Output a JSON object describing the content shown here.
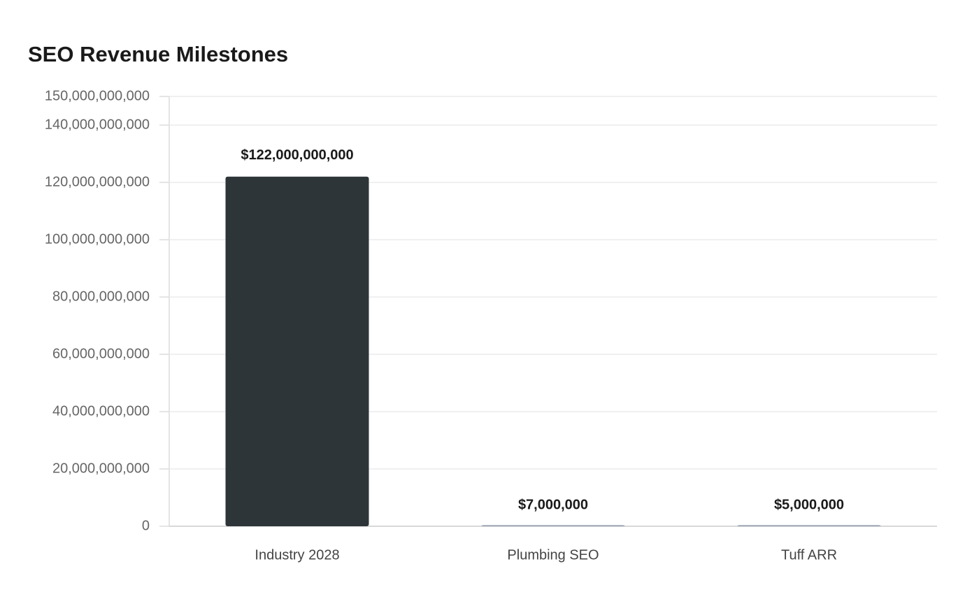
{
  "chart_data": {
    "type": "bar",
    "title": "SEO Revenue Milestones",
    "categories": [
      "Industry 2028",
      "Plumbing SEO",
      "Tuff ARR"
    ],
    "values": [
      122000000000,
      7000000,
      5000000
    ],
    "value_labels": [
      "$122,000,000,000",
      "$7,000,000",
      "$5,000,000"
    ],
    "colors": [
      "#2e3538",
      "#8e97a8",
      "#8e97a8"
    ],
    "ylim": [
      0,
      150000000000
    ],
    "yticks": [
      0,
      {
        "value": 20000000000,
        "label": "20,000,000,000"
      },
      {
        "value": 40000000000,
        "label": "40,000,000,000"
      },
      {
        "value": 60000000000,
        "label": "60,000,000,000"
      },
      {
        "value": 80000000000,
        "label": "80,000,000,000"
      },
      {
        "value": 100000000000,
        "label": "100,000,000,000"
      },
      {
        "value": 120000000000,
        "label": "120,000,000,000"
      },
      {
        "value": 140000000000,
        "label": "140,000,000,000"
      },
      {
        "value": 150000000000,
        "label": "150,000,000,000"
      }
    ],
    "grid": true
  }
}
